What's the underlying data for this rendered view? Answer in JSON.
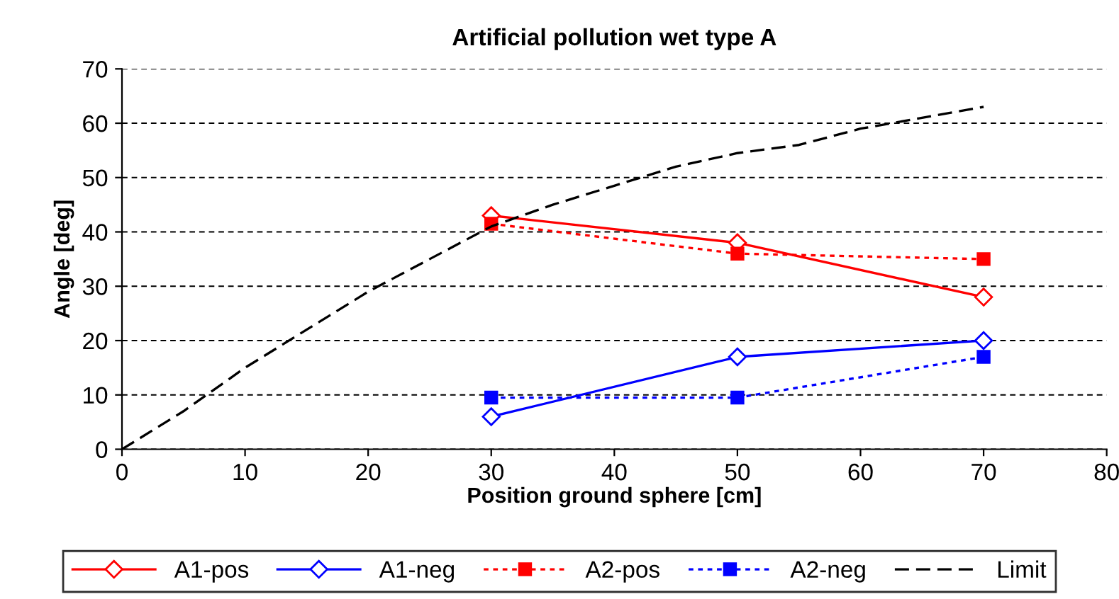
{
  "chart_data": {
    "type": "line",
    "title": "Artificial pollution wet type A",
    "xlabel": "Position ground sphere [cm]",
    "ylabel": "Angle [deg]",
    "xlim": [
      0,
      80
    ],
    "xticks": [
      0,
      10,
      20,
      30,
      40,
      50,
      60,
      70,
      80
    ],
    "ylim": [
      0,
      70
    ],
    "yticks": [
      0,
      10,
      20,
      30,
      40,
      50,
      60,
      70
    ],
    "grid": "y",
    "legend": "bottom",
    "series": [
      {
        "name": "A1-pos",
        "color": "#ff0000",
        "x": [
          30,
          50,
          70
        ],
        "values": [
          43,
          38,
          28
        ],
        "marker": "diamond",
        "line_style": "solid"
      },
      {
        "name": "A1-neg",
        "color": "#0000ff",
        "x": [
          30,
          50,
          70
        ],
        "values": [
          6,
          17,
          20
        ],
        "marker": "diamond",
        "line_style": "solid"
      },
      {
        "name": "A2-pos",
        "color": "#ff0000",
        "x": [
          30,
          50,
          70
        ],
        "values": [
          41.5,
          36,
          35
        ],
        "marker": "square",
        "line_style": "dotted"
      },
      {
        "name": "A2-neg",
        "color": "#0000ff",
        "x": [
          30,
          50,
          70
        ],
        "values": [
          9.5,
          9.5,
          17
        ],
        "marker": "square",
        "line_style": "dotted"
      },
      {
        "name": "Limit",
        "color": "#000000",
        "x": [
          0,
          5,
          10,
          15,
          20,
          25,
          30,
          35,
          40,
          45,
          50,
          55,
          60,
          65,
          70
        ],
        "values": [
          0,
          7,
          15,
          22,
          29,
          35,
          41,
          45,
          48.5,
          52,
          54.5,
          56,
          59,
          61,
          63
        ],
        "marker": "none",
        "line_style": "dashed"
      }
    ]
  }
}
